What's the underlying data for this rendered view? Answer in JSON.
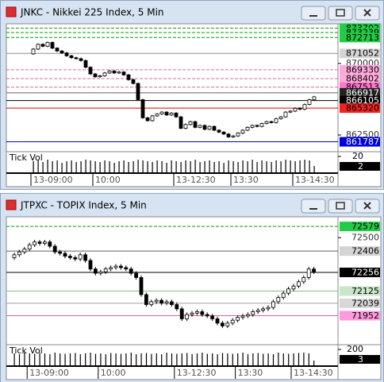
{
  "chart_data": [
    {
      "type": "candlestick",
      "title": "JNKC - Nikkei 225 Index, 5 Min",
      "categories": [
        "13-09:00",
        null,
        null,
        null,
        null,
        null,
        null,
        null,
        null,
        null,
        null,
        null,
        null,
        "10:00",
        null,
        null,
        null,
        null,
        null,
        null,
        null,
        null,
        null,
        null,
        null,
        null,
        null,
        null,
        null,
        null,
        "13-12:30",
        null,
        null,
        null,
        null,
        null,
        null,
        null,
        null,
        null,
        null,
        null,
        "13:30",
        null,
        null,
        null,
        null,
        null,
        null,
        null,
        null,
        null,
        null,
        null,
        null,
        "13-14:30",
        null,
        null,
        null,
        null
      ],
      "open": [
        871000,
        871500,
        872000,
        871800,
        872200,
        871600,
        871300,
        871100,
        870800,
        870600,
        870500,
        870300,
        869600,
        868900,
        868600,
        868700,
        869000,
        869200,
        869000,
        869100,
        868800,
        868300,
        867900,
        866200,
        864300,
        864000,
        864500,
        864700,
        864900,
        864600,
        864800,
        864400,
        863200,
        863600,
        863900,
        863300,
        863500,
        863100,
        863400,
        863000,
        862800,
        862600,
        862300,
        862400,
        862700,
        863000,
        863300,
        863500,
        863400,
        863700,
        863900,
        863800,
        864200,
        864400,
        864900,
        865000,
        865300,
        865200,
        865700,
        866200
      ],
      "high": [
        871600,
        872100,
        872100,
        872300,
        872300,
        871700,
        871400,
        871200,
        870900,
        870700,
        870600,
        870400,
        869700,
        869000,
        868800,
        869100,
        869300,
        869300,
        869200,
        869200,
        868900,
        868400,
        868000,
        866300,
        864400,
        864600,
        864800,
        865000,
        865000,
        864900,
        864900,
        864500,
        863700,
        864000,
        864000,
        863600,
        863600,
        863500,
        863500,
        863100,
        862900,
        862700,
        862500,
        862800,
        863100,
        863400,
        863600,
        863600,
        863800,
        864000,
        864000,
        864300,
        864500,
        865000,
        865100,
        865400,
        865400,
        865800,
        866300,
        866600
      ],
      "low": [
        870900,
        871400,
        871700,
        871700,
        871500,
        871200,
        871000,
        870700,
        870500,
        870400,
        870200,
        869500,
        868800,
        868500,
        868500,
        868600,
        868900,
        868900,
        868900,
        868700,
        868200,
        867800,
        866100,
        864200,
        863900,
        863900,
        864400,
        864600,
        864500,
        864500,
        864300,
        863100,
        863100,
        863500,
        863200,
        863200,
        863000,
        863000,
        862900,
        862700,
        862500,
        862200,
        862200,
        862300,
        862600,
        862900,
        863200,
        863300,
        863300,
        863600,
        863700,
        863700,
        864100,
        864300,
        864800,
        864900,
        865100,
        865100,
        865600,
        866100
      ],
      "close": [
        871500,
        872000,
        871800,
        872200,
        871600,
        871300,
        871100,
        870800,
        870600,
        870500,
        870300,
        869600,
        868900,
        868600,
        868700,
        869000,
        869200,
        869000,
        869100,
        868800,
        868300,
        867900,
        866200,
        864300,
        864000,
        864500,
        864700,
        864900,
        864600,
        864800,
        864400,
        863200,
        863600,
        863900,
        863300,
        863500,
        863100,
        863400,
        863000,
        862800,
        862600,
        862300,
        862400,
        862700,
        863000,
        863300,
        863500,
        863400,
        863700,
        863900,
        863800,
        864200,
        864400,
        864900,
        865000,
        865300,
        865200,
        865700,
        866200,
        866500
      ],
      "up_color": "#ffffff",
      "down_color": "#000000",
      "ylim": [
        861000,
        873900
      ],
      "yticks": [
        870000,
        862500
      ],
      "levels": [
        {
          "value": 873702,
          "color": "#00a000",
          "style": "dashed",
          "label_bg": "#22cc44",
          "label_color": "#000000"
        },
        {
          "value": 873239,
          "color": "#00a000",
          "style": "dashed",
          "label_bg": "#22cc44",
          "label_color": "#000000"
        },
        {
          "value": 872713,
          "color": "#00a000",
          "style": "dashed",
          "label_bg": "#22cc44",
          "label_color": "#000000"
        },
        {
          "value": 871052,
          "color": "#909090",
          "style": "solid",
          "label_bg": "#d4d4d4",
          "label_color": "#000000"
        },
        {
          "value": 869330,
          "color": "#e060a0",
          "style": "dashed",
          "label_bg": "#ffaadd",
          "label_color": "#000000"
        },
        {
          "value": 868402,
          "color": "#e060a0",
          "style": "dashed",
          "label_bg": "#ffaadd",
          "label_color": "#000000"
        },
        {
          "value": 867513,
          "color": "#e060a0",
          "style": "dashed",
          "label_bg": "#ff77cc",
          "label_color": "#000000"
        },
        {
          "value": 866917,
          "color": "#606060",
          "style": "solid",
          "label_bg": "#222222",
          "label_color": "#ffffff"
        },
        {
          "value": 866105,
          "color": "#000000",
          "style": "solid",
          "label_bg": "#000000",
          "label_color": "#ffffff"
        },
        {
          "value": 865320,
          "color": "#dd0000",
          "style": "solid",
          "label_bg": "#ee2222",
          "label_color": "#000000"
        },
        {
          "value": 861787,
          "color": "#0000cc",
          "style": "solid",
          "label_bg": "#0000dd",
          "label_color": "#ffffff"
        }
      ],
      "vol_label": "Tick Vol",
      "volume": [
        14,
        15,
        13,
        16,
        14,
        15,
        12,
        14,
        15,
        13,
        14,
        16,
        15,
        14,
        13,
        15,
        14,
        12,
        14,
        15,
        13,
        14,
        16,
        15,
        14,
        13,
        15,
        14,
        12,
        15,
        14,
        13,
        15,
        14,
        16,
        13,
        14,
        15,
        13,
        14,
        12,
        15,
        14,
        13,
        15,
        14,
        16,
        13,
        15,
        14,
        13,
        15,
        14,
        16,
        15,
        14,
        15,
        16,
        15,
        8
      ],
      "vol_ylim": [
        0,
        24
      ],
      "vol_yticks": [
        20
      ],
      "vol_last": 2
    },
    {
      "type": "candlestick",
      "title": "JTPXC - TOPIX Index, 5 Min",
      "categories": [
        null,
        null,
        null,
        "13-09:00",
        null,
        null,
        null,
        null,
        null,
        null,
        null,
        null,
        null,
        null,
        null,
        null,
        null,
        "10:00",
        null,
        null,
        null,
        null,
        null,
        null,
        null,
        null,
        null,
        null,
        null,
        null,
        null,
        null,
        "13-12:30",
        null,
        null,
        null,
        null,
        null,
        null,
        null,
        null,
        null,
        null,
        null,
        "13:30",
        null,
        null,
        null,
        null,
        null,
        null,
        null,
        null,
        null,
        null,
        "13-14:30",
        null,
        null,
        null,
        null
      ],
      "open": [
        72360,
        72380,
        72400,
        72420,
        72450,
        72470,
        72460,
        72470,
        72440,
        72400,
        72390,
        72370,
        72360,
        72350,
        72380,
        72340,
        72280,
        72250,
        72260,
        72280,
        72290,
        72300,
        72290,
        72280,
        72250,
        72220,
        72100,
        72030,
        72050,
        72060,
        72040,
        72050,
        72030,
        72000,
        71930,
        71960,
        71970,
        71980,
        71960,
        71950,
        71930,
        71900,
        71880,
        71900,
        71920,
        71940,
        71950,
        71960,
        71980,
        71990,
        72000,
        72010,
        72050,
        72080,
        72110,
        72140,
        72160,
        72190,
        72220,
        72280
      ],
      "high": [
        72395,
        72415,
        72435,
        72465,
        72485,
        72485,
        72485,
        72485,
        72455,
        72415,
        72405,
        72385,
        72375,
        72395,
        72395,
        72355,
        72295,
        72275,
        72295,
        72305,
        72315,
        72315,
        72305,
        72295,
        72265,
        72235,
        72115,
        72065,
        72075,
        72075,
        72065,
        72065,
        72045,
        72015,
        71975,
        71985,
        71995,
        71995,
        71975,
        71965,
        71945,
        71915,
        71915,
        71935,
        71955,
        71965,
        71975,
        71995,
        72005,
        72015,
        72025,
        72065,
        72095,
        72125,
        72155,
        72175,
        72205,
        72235,
        72295,
        72295
      ],
      "low": [
        72345,
        72365,
        72385,
        72405,
        72435,
        72445,
        72445,
        72425,
        72385,
        72375,
        72355,
        72345,
        72335,
        72335,
        72325,
        72265,
        72235,
        72235,
        72245,
        72265,
        72275,
        72275,
        72265,
        72235,
        72205,
        72085,
        72015,
        72015,
        72035,
        72025,
        72025,
        72015,
        71985,
        71915,
        71915,
        71945,
        71955,
        71945,
        71935,
        71915,
        71885,
        71865,
        71865,
        71885,
        71905,
        71925,
        71935,
        71945,
        71965,
        71975,
        71985,
        71995,
        72035,
        72065,
        72095,
        72125,
        72145,
        72175,
        72205,
        72245
      ],
      "close": [
        72380,
        72400,
        72420,
        72450,
        72470,
        72460,
        72470,
        72440,
        72400,
        72390,
        72370,
        72360,
        72350,
        72380,
        72340,
        72280,
        72250,
        72260,
        72280,
        72290,
        72300,
        72290,
        72280,
        72250,
        72220,
        72100,
        72030,
        72050,
        72060,
        72040,
        72050,
        72030,
        72000,
        71930,
        71960,
        71970,
        71980,
        71960,
        71950,
        71930,
        71900,
        71880,
        71900,
        71920,
        71940,
        71950,
        71960,
        71980,
        71990,
        72000,
        72010,
        72050,
        72080,
        72110,
        72140,
        72160,
        72190,
        72220,
        72280,
        72260
      ],
      "up_color": "#ffffff",
      "down_color": "#000000",
      "ylim": [
        71765,
        72630
      ],
      "yticks": [
        72500
      ],
      "levels": [
        {
          "value": 72579,
          "color": "#00a000",
          "style": "dashed",
          "label_bg": "#22cc44",
          "label_color": "#000000"
        },
        {
          "value": 72406,
          "color": "#606060",
          "style": "solid",
          "label_bg": "#d4d4d4",
          "label_color": "#000000"
        },
        {
          "value": 72256,
          "color": "#000000",
          "style": "solid",
          "label_bg": "#000000",
          "label_color": "#ffffff"
        },
        {
          "value": 72125,
          "color": "#90b890",
          "style": "solid",
          "label_bg": "#c8e6c8",
          "label_color": "#000000"
        },
        {
          "value": 72039,
          "color": "#a0a0a0",
          "style": "solid",
          "label_bg": "#d8d8d8",
          "label_color": "#000000"
        },
        {
          "value": 71952,
          "color": "#e060a0",
          "style": "solid",
          "label_bg": "#ff99dd",
          "label_color": "#000000"
        }
      ],
      "vol_label": "Tick Vol",
      "volume": [
        150,
        140,
        160,
        150,
        145,
        155,
        150,
        140,
        160,
        150,
        145,
        150,
        155,
        140,
        150,
        160,
        145,
        150,
        140,
        155,
        150,
        145,
        150,
        160,
        140,
        150,
        155,
        145,
        150,
        140,
        160,
        150,
        145,
        150,
        155,
        140,
        150,
        160,
        145,
        150,
        140,
        155,
        150,
        145,
        150,
        160,
        140,
        150,
        155,
        145,
        150,
        140,
        160,
        150,
        145,
        150,
        155,
        160,
        150,
        60
      ],
      "vol_ylim": [
        0,
        240
      ],
      "vol_yticks": [
        200
      ],
      "vol_last": 3
    }
  ]
}
